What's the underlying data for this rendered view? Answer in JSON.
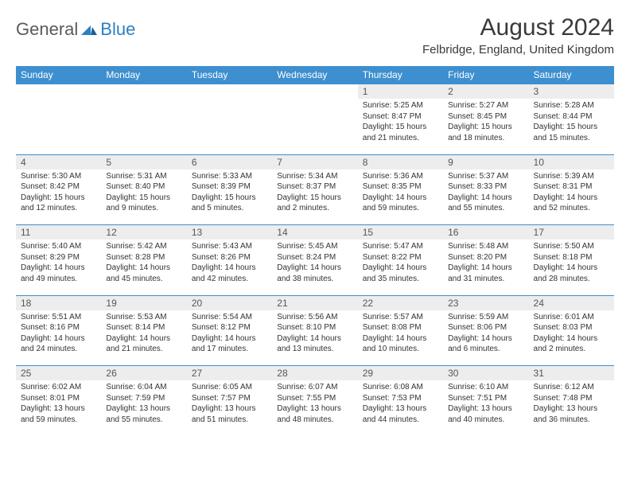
{
  "brand": {
    "part1": "General",
    "part2": "Blue"
  },
  "title": "August 2024",
  "location": "Felbridge, England, United Kingdom",
  "colors": {
    "header_bg": "#3d8fcf",
    "header_text": "#ffffff",
    "daynum_bg": "#ededed",
    "cell_border": "#3d8fcf",
    "body_text": "#333333",
    "brand_gray": "#5a5a5a",
    "brand_blue": "#2b7fc3"
  },
  "weekdays": [
    "Sunday",
    "Monday",
    "Tuesday",
    "Wednesday",
    "Thursday",
    "Friday",
    "Saturday"
  ],
  "weeks": [
    [
      null,
      null,
      null,
      null,
      {
        "n": "1",
        "sr": "Sunrise: 5:25 AM",
        "ss": "Sunset: 8:47 PM",
        "dl": "Daylight: 15 hours and 21 minutes."
      },
      {
        "n": "2",
        "sr": "Sunrise: 5:27 AM",
        "ss": "Sunset: 8:45 PM",
        "dl": "Daylight: 15 hours and 18 minutes."
      },
      {
        "n": "3",
        "sr": "Sunrise: 5:28 AM",
        "ss": "Sunset: 8:44 PM",
        "dl": "Daylight: 15 hours and 15 minutes."
      }
    ],
    [
      {
        "n": "4",
        "sr": "Sunrise: 5:30 AM",
        "ss": "Sunset: 8:42 PM",
        "dl": "Daylight: 15 hours and 12 minutes."
      },
      {
        "n": "5",
        "sr": "Sunrise: 5:31 AM",
        "ss": "Sunset: 8:40 PM",
        "dl": "Daylight: 15 hours and 9 minutes."
      },
      {
        "n": "6",
        "sr": "Sunrise: 5:33 AM",
        "ss": "Sunset: 8:39 PM",
        "dl": "Daylight: 15 hours and 5 minutes."
      },
      {
        "n": "7",
        "sr": "Sunrise: 5:34 AM",
        "ss": "Sunset: 8:37 PM",
        "dl": "Daylight: 15 hours and 2 minutes."
      },
      {
        "n": "8",
        "sr": "Sunrise: 5:36 AM",
        "ss": "Sunset: 8:35 PM",
        "dl": "Daylight: 14 hours and 59 minutes."
      },
      {
        "n": "9",
        "sr": "Sunrise: 5:37 AM",
        "ss": "Sunset: 8:33 PM",
        "dl": "Daylight: 14 hours and 55 minutes."
      },
      {
        "n": "10",
        "sr": "Sunrise: 5:39 AM",
        "ss": "Sunset: 8:31 PM",
        "dl": "Daylight: 14 hours and 52 minutes."
      }
    ],
    [
      {
        "n": "11",
        "sr": "Sunrise: 5:40 AM",
        "ss": "Sunset: 8:29 PM",
        "dl": "Daylight: 14 hours and 49 minutes."
      },
      {
        "n": "12",
        "sr": "Sunrise: 5:42 AM",
        "ss": "Sunset: 8:28 PM",
        "dl": "Daylight: 14 hours and 45 minutes."
      },
      {
        "n": "13",
        "sr": "Sunrise: 5:43 AM",
        "ss": "Sunset: 8:26 PM",
        "dl": "Daylight: 14 hours and 42 minutes."
      },
      {
        "n": "14",
        "sr": "Sunrise: 5:45 AM",
        "ss": "Sunset: 8:24 PM",
        "dl": "Daylight: 14 hours and 38 minutes."
      },
      {
        "n": "15",
        "sr": "Sunrise: 5:47 AM",
        "ss": "Sunset: 8:22 PM",
        "dl": "Daylight: 14 hours and 35 minutes."
      },
      {
        "n": "16",
        "sr": "Sunrise: 5:48 AM",
        "ss": "Sunset: 8:20 PM",
        "dl": "Daylight: 14 hours and 31 minutes."
      },
      {
        "n": "17",
        "sr": "Sunrise: 5:50 AM",
        "ss": "Sunset: 8:18 PM",
        "dl": "Daylight: 14 hours and 28 minutes."
      }
    ],
    [
      {
        "n": "18",
        "sr": "Sunrise: 5:51 AM",
        "ss": "Sunset: 8:16 PM",
        "dl": "Daylight: 14 hours and 24 minutes."
      },
      {
        "n": "19",
        "sr": "Sunrise: 5:53 AM",
        "ss": "Sunset: 8:14 PM",
        "dl": "Daylight: 14 hours and 21 minutes."
      },
      {
        "n": "20",
        "sr": "Sunrise: 5:54 AM",
        "ss": "Sunset: 8:12 PM",
        "dl": "Daylight: 14 hours and 17 minutes."
      },
      {
        "n": "21",
        "sr": "Sunrise: 5:56 AM",
        "ss": "Sunset: 8:10 PM",
        "dl": "Daylight: 14 hours and 13 minutes."
      },
      {
        "n": "22",
        "sr": "Sunrise: 5:57 AM",
        "ss": "Sunset: 8:08 PM",
        "dl": "Daylight: 14 hours and 10 minutes."
      },
      {
        "n": "23",
        "sr": "Sunrise: 5:59 AM",
        "ss": "Sunset: 8:06 PM",
        "dl": "Daylight: 14 hours and 6 minutes."
      },
      {
        "n": "24",
        "sr": "Sunrise: 6:01 AM",
        "ss": "Sunset: 8:03 PM",
        "dl": "Daylight: 14 hours and 2 minutes."
      }
    ],
    [
      {
        "n": "25",
        "sr": "Sunrise: 6:02 AM",
        "ss": "Sunset: 8:01 PM",
        "dl": "Daylight: 13 hours and 59 minutes."
      },
      {
        "n": "26",
        "sr": "Sunrise: 6:04 AM",
        "ss": "Sunset: 7:59 PM",
        "dl": "Daylight: 13 hours and 55 minutes."
      },
      {
        "n": "27",
        "sr": "Sunrise: 6:05 AM",
        "ss": "Sunset: 7:57 PM",
        "dl": "Daylight: 13 hours and 51 minutes."
      },
      {
        "n": "28",
        "sr": "Sunrise: 6:07 AM",
        "ss": "Sunset: 7:55 PM",
        "dl": "Daylight: 13 hours and 48 minutes."
      },
      {
        "n": "29",
        "sr": "Sunrise: 6:08 AM",
        "ss": "Sunset: 7:53 PM",
        "dl": "Daylight: 13 hours and 44 minutes."
      },
      {
        "n": "30",
        "sr": "Sunrise: 6:10 AM",
        "ss": "Sunset: 7:51 PM",
        "dl": "Daylight: 13 hours and 40 minutes."
      },
      {
        "n": "31",
        "sr": "Sunrise: 6:12 AM",
        "ss": "Sunset: 7:48 PM",
        "dl": "Daylight: 13 hours and 36 minutes."
      }
    ]
  ]
}
